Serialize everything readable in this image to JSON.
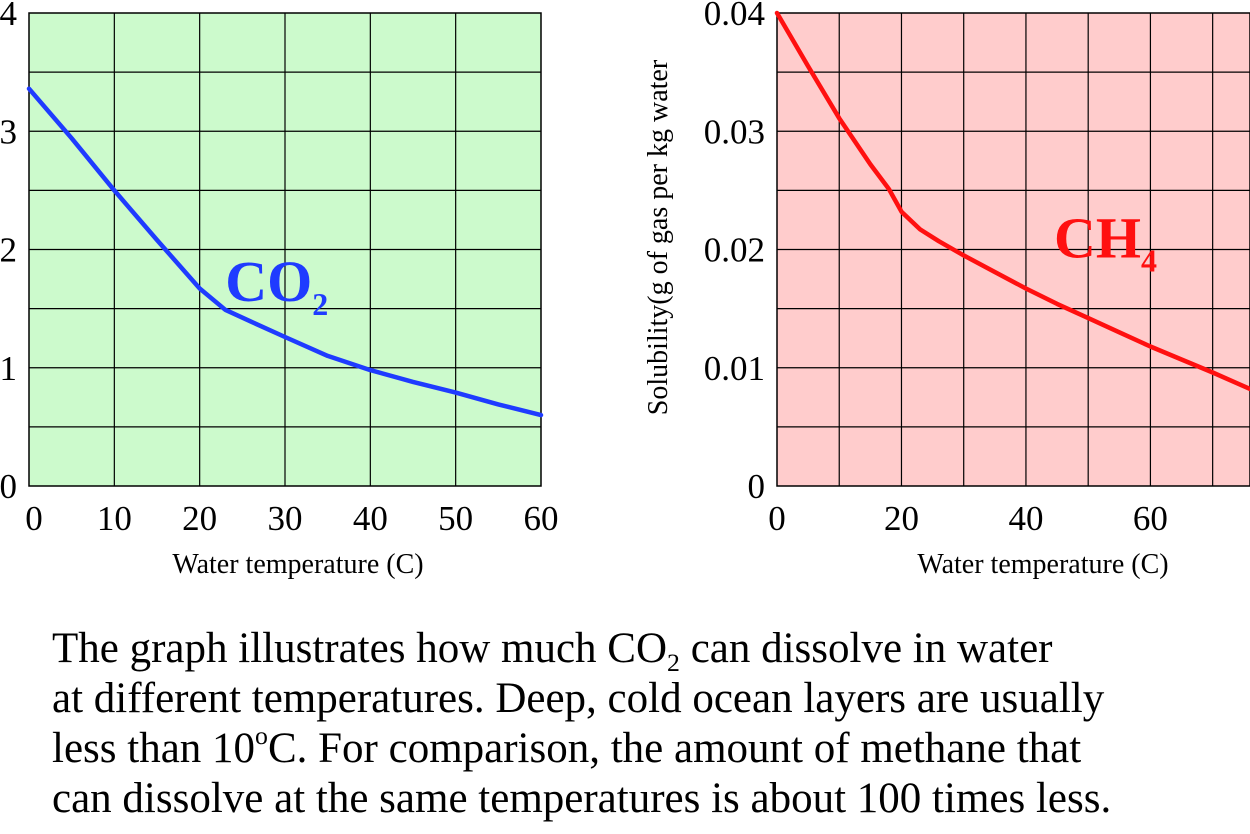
{
  "chart_data": [
    {
      "type": "line",
      "title": "",
      "xlabel": "Water temperature (C)",
      "ylabel": "",
      "xlim": [
        0,
        60
      ],
      "ylim": [
        0,
        4
      ],
      "x_ticks": [
        0,
        10,
        20,
        30,
        40,
        50,
        60
      ],
      "x_tick_labels": [
        "0",
        "10",
        "20",
        "30",
        "40",
        "50",
        "60"
      ],
      "y_ticks": [
        0,
        1,
        2,
        3,
        4
      ],
      "y_tick_labels": [
        "0",
        "1",
        "2",
        "3",
        "4"
      ],
      "grid": true,
      "background": "#ccfacc",
      "series": [
        {
          "name": "",
          "color": "#1f3bff",
          "x": [
            0,
            5,
            10,
            15,
            20,
            23,
            26,
            30,
            35,
            40,
            45,
            50,
            55,
            60
          ],
          "y": [
            3.36,
            2.94,
            2.5,
            2.08,
            1.67,
            1.49,
            1.39,
            1.26,
            1.1,
            0.98,
            0.88,
            0.79,
            0.69,
            0.6
          ]
        }
      ],
      "annotation": {
        "text": "CO",
        "subscript": "2",
        "color": "#1f3bff",
        "x": 23,
        "y": 1.75
      }
    },
    {
      "type": "line",
      "title": "",
      "xlabel": "Water temperature (C)",
      "ylabel": "Solubility(g of gas per kg water",
      "xlim": [
        0,
        76
      ],
      "ylim": [
        0,
        0.04
      ],
      "x_ticks": [
        0,
        20,
        40,
        60
      ],
      "x_tick_labels": [
        "0",
        "20",
        "40",
        "60"
      ],
      "y_ticks": [
        0,
        0.01,
        0.02,
        0.03,
        0.04
      ],
      "y_tick_labels": [
        "0",
        "0.01",
        "0.02",
        "0.03",
        "0.04"
      ],
      "grid_x_step": 10,
      "grid_y_step": 0.005,
      "grid": true,
      "background": "#ffcccc",
      "series": [
        {
          "name": "",
          "color": "#ff1010",
          "x": [
            0,
            5,
            10,
            15,
            18,
            20,
            23,
            26,
            30,
            35,
            40,
            45,
            50,
            55,
            60,
            65,
            70,
            76
          ],
          "y": [
            0.04,
            0.0355,
            0.0311,
            0.0272,
            0.0251,
            0.0232,
            0.0217,
            0.0207,
            0.0195,
            0.0181,
            0.0167,
            0.0154,
            0.0142,
            0.013,
            0.0118,
            0.0107,
            0.0096,
            0.0082
          ]
        }
      ],
      "annotation": {
        "text": "CH",
        "subscript": "4",
        "color": "#ff1010",
        "x": 44.5,
        "y": 0.0212
      }
    }
  ],
  "caption": {
    "line1_before": "The graph illustrates how much CO",
    "line1_sub": "2",
    "line1_after": " can dissolve in water",
    "line2": "at different temperatures.  Deep, cold ocean layers are usually",
    "line3_before": "less than 10",
    "line3_sup": "o",
    "line3_after": "C.  For comparison, the amount of methane that",
    "line4": "can dissolve at the same temperatures is about 100 times less."
  }
}
